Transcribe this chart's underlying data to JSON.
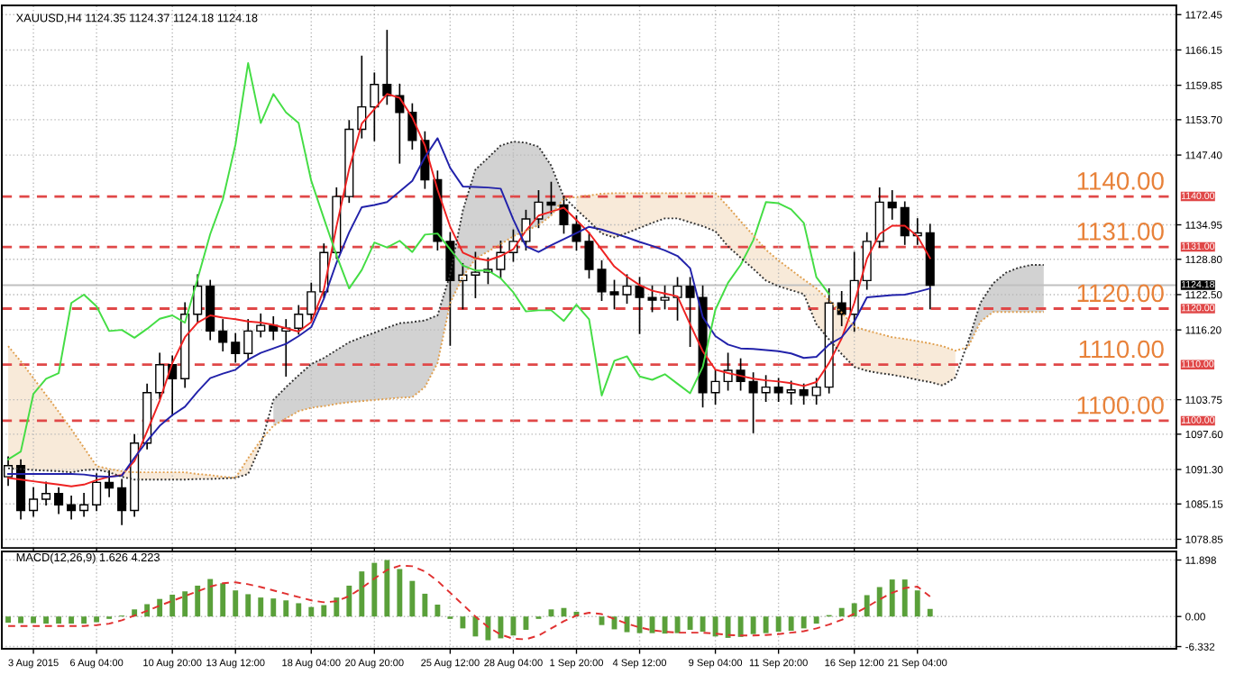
{
  "chart_data": [
    {
      "type": "candlestick",
      "title": "XAUUSD,H4 1124.35 1124.37 1124.18 1124.18",
      "categories": [
        null,
        null,
        null,
        null,
        null,
        null,
        null,
        null,
        null,
        null,
        null,
        null,
        null,
        null,
        null,
        null,
        null,
        null,
        null,
        null,
        null,
        null,
        null,
        null,
        null,
        null,
        null,
        null,
        null,
        null,
        null,
        null,
        null,
        null,
        null,
        null,
        null,
        null,
        null,
        null,
        null,
        null,
        null,
        null,
        null,
        null,
        null,
        null,
        null,
        null,
        null,
        null,
        null,
        null,
        null,
        null,
        null,
        null,
        null,
        null,
        null,
        null,
        null,
        null,
        null,
        null,
        null,
        null,
        null,
        null,
        null,
        null,
        null,
        null,
        null,
        null,
        null,
        null,
        null,
        null,
        null,
        null,
        null,
        null,
        null,
        null,
        null,
        null,
        null,
        null,
        null,
        null,
        null
      ],
      "ohlc": [
        [
          1090,
          1093.5,
          1088.5,
          1092
        ],
        [
          1092,
          1093,
          1082.5,
          1084
        ],
        [
          1084,
          1088,
          1083,
          1086
        ],
        [
          1086,
          1089,
          1085,
          1087
        ],
        [
          1087,
          1088,
          1083.5,
          1085
        ],
        [
          1085,
          1086.5,
          1082.5,
          1084
        ],
        [
          1084,
          1087,
          1083,
          1085
        ],
        [
          1085,
          1090.5,
          1084,
          1089
        ],
        [
          1089,
          1091,
          1086.5,
          1088
        ],
        [
          1088,
          1089.5,
          1081.5,
          1084
        ],
        [
          1084,
          1097.5,
          1083,
          1096
        ],
        [
          1096,
          1106.5,
          1095,
          1105
        ],
        [
          1105,
          1112,
          1104,
          1110
        ],
        [
          1110,
          1111.5,
          1101,
          1107.5
        ],
        [
          1107.5,
          1121,
          1106,
          1119
        ],
        [
          1119,
          1126,
          1117.5,
          1124
        ],
        [
          1124,
          1125,
          1114.5,
          1116
        ],
        [
          1116,
          1118,
          1112.5,
          1114
        ],
        [
          1114,
          1115.5,
          1110.5,
          1112
        ],
        [
          1112,
          1118,
          1111,
          1116
        ],
        [
          1116,
          1119,
          1115,
          1117
        ],
        [
          1117,
          1118.5,
          1114.5,
          1116
        ],
        [
          1116,
          1118,
          1108,
          1116.5
        ],
        [
          1116.5,
          1120.5,
          1115.5,
          1119
        ],
        [
          1119,
          1124.5,
          1118,
          1123
        ],
        [
          1123,
          1131.5,
          1122,
          1130
        ],
        [
          1130,
          1141.5,
          1129,
          1140
        ],
        [
          1140,
          1153.5,
          1139,
          1152
        ],
        [
          1152,
          1165,
          1150.5,
          1156
        ],
        [
          1156,
          1162,
          1150,
          1160
        ],
        [
          1160,
          1169.6,
          1156.5,
          1158
        ],
        [
          1158,
          1160,
          1146,
          1155
        ],
        [
          1155,
          1156.5,
          1148.5,
          1150
        ],
        [
          1150,
          1151.5,
          1141.5,
          1143
        ],
        [
          1143,
          1144.5,
          1130.5,
          1132
        ],
        [
          1132,
          1133.5,
          1113.5,
          1125
        ],
        [
          1125,
          1128,
          1120,
          1126
        ],
        [
          1126,
          1130,
          1122,
          1126.5
        ],
        [
          1126.5,
          1129,
          1124.5,
          1127
        ],
        [
          1127,
          1132,
          1125.5,
          1130
        ],
        [
          1130,
          1134,
          1128.5,
          1132
        ],
        [
          1132,
          1137.5,
          1130.5,
          1136
        ],
        [
          1136,
          1141,
          1134.5,
          1139
        ],
        [
          1139,
          1142.5,
          1137,
          1138.5
        ],
        [
          1138.5,
          1140,
          1133.5,
          1135
        ],
        [
          1135,
          1136.5,
          1130.5,
          1132
        ],
        [
          1132,
          1133.5,
          1125.5,
          1127
        ],
        [
          1127,
          1128.5,
          1121.5,
          1123
        ],
        [
          1123,
          1125,
          1120,
          1122.5
        ],
        [
          1122.5,
          1126,
          1121,
          1124
        ],
        [
          1124,
          1125.5,
          1115.6,
          1122
        ],
        [
          1122,
          1124,
          1119.5,
          1121.5
        ],
        [
          1121.5,
          1124,
          1120,
          1122
        ],
        [
          1122,
          1125.5,
          1118,
          1124
        ],
        [
          1124,
          1125.5,
          1113.3,
          1122
        ],
        [
          1122,
          1124,
          1102.5,
          1105
        ],
        [
          1105,
          1109,
          1103,
          1107
        ],
        [
          1107,
          1112,
          1105.5,
          1109
        ],
        [
          1109,
          1111,
          1105.5,
          1107
        ],
        [
          1107,
          1108.5,
          1097.9,
          1105
        ],
        [
          1105,
          1108,
          1103.5,
          1106
        ],
        [
          1106,
          1107.5,
          1103.5,
          1105
        ],
        [
          1105,
          1107,
          1103,
          1105.5
        ],
        [
          1105.5,
          1106.5,
          1103,
          1104.5
        ],
        [
          1104.5,
          1107.5,
          1103,
          1106
        ],
        [
          1106,
          1123.5,
          1105,
          1121
        ],
        [
          1121,
          1123,
          1117,
          1119
        ],
        [
          1119,
          1130,
          1116,
          1125
        ],
        [
          1125,
          1133.5,
          1123.5,
          1132
        ],
        [
          1132,
          1141.5,
          1131,
          1139
        ],
        [
          1139,
          1141,
          1136,
          1138
        ],
        [
          1138,
          1139,
          1131.5,
          1133
        ],
        [
          1133,
          1136,
          1131.5,
          1133.5
        ],
        [
          1133.5,
          1135,
          1120,
          1124.18
        ],
        null,
        null,
        null,
        null,
        null,
        null,
        null,
        null,
        null,
        null,
        null,
        null,
        null,
        null,
        null,
        null,
        null,
        null,
        null
      ],
      "series": [
        {
          "type": "line",
          "color": "#ee2222",
          "values": [
            1089.8,
            1089.5,
            1089.2,
            1088.9,
            1088.6,
            1088.3,
            1088.6,
            1089.4,
            1090,
            1090.3,
            1092.8,
            1098.1,
            1103.6,
            1110.3,
            1114.9,
            1117.5,
            1118.8,
            1118.4,
            1118.1,
            1117.7,
            1117.5,
            1117.1,
            1116.5,
            1115.9,
            1117.6,
            1123.4,
            1134.7,
            1144.9,
            1153,
            1155.6,
            1158.3,
            1157.6,
            1154.1,
            1149.1,
            1141.2,
            1134.6,
            1130,
            1129,
            1128.6,
            1129.4,
            1130.6,
            1133.9,
            1136.6,
            1137.3,
            1138,
            1135.8,
            1133.5,
            1130.5,
            1127.5,
            1125.7,
            1124.2,
            1123.2,
            1122.7,
            1122.2,
            1117.2,
            1112.4,
            1109.1,
            1108.5,
            1108,
            1107.5,
            1107.2,
            1107,
            1106.7,
            1106.2,
            1106.9,
            1110.3,
            1114.7,
            1121,
            1128.9,
            1133.3,
            1134.8,
            1134.8,
            1132.9,
            1129,
            null,
            null,
            null,
            null,
            null,
            null,
            null,
            null,
            null,
            null,
            null,
            null,
            null,
            null,
            null,
            null,
            null,
            null,
            null
          ]
        },
        {
          "type": "line",
          "color": "#2222aa",
          "values": [
            1090.5,
            1090.5,
            1090.5,
            1090.5,
            1090.5,
            1090.5,
            1090.4,
            1090.1,
            1090,
            1090.2,
            1093.4,
            1096.4,
            1099.1,
            1101,
            1102.5,
            1105.2,
            1107.6,
            1108.4,
            1109.1,
            1110.9,
            1112.1,
            1112.9,
            1113.7,
            1115.1,
            1116.7,
            1121.8,
            1128.2,
            1133.6,
            1138.1,
            1138.5,
            1139,
            1140.9,
            1142.8,
            1147,
            1150.4,
            1145.1,
            1141.8,
            1141.7,
            1141.6,
            1141.4,
            1135.9,
            1131.1,
            1130.1,
            1131.3,
            1132.4,
            1133.5,
            1134.6,
            1134.1,
            1133.4,
            1132.7,
            1131.9,
            1131.2,
            1130.4,
            1129.4,
            1127.2,
            1118.5,
            1115.1,
            1113.6,
            1112.9,
            1112.8,
            1112.6,
            1112.4,
            1112,
            1111.2,
            1111.4,
            1113.6,
            1114.9,
            1117.7,
            1122,
            1122.2,
            1122.4,
            1122.5,
            1123,
            1123.6,
            null,
            null,
            null,
            null,
            null,
            null,
            null,
            null,
            null,
            null,
            null,
            null,
            null,
            null,
            null,
            null,
            null,
            null,
            null
          ]
        },
        {
          "type": "line",
          "color": "#44dd44",
          "values": [
            1093.1,
            1094.5,
            1104.8,
            1107.5,
            1108.5,
            1121,
            1122.5,
            1120.4,
            1116,
            1116.2,
            1114.8,
            1116.4,
            1118.2,
            1118.8,
            1117.5,
            1125.3,
            1133.3,
            1139.5,
            1149.3,
            1163.8,
            1153.1,
            1158.3,
            1155,
            1153.1,
            1142.8,
            1136.1,
            1129.5,
            1123.6,
            1126.9,
            1131.8,
            1130.9,
            1132.1,
            1130.1,
            1133.2,
            1133.4,
            1130.6,
            1127.7,
            1126.8,
            1126.8,
            1125.4,
            1122.9,
            1119.5,
            1119.7,
            1119.7,
            1117.8,
            1120.7,
            1118.1,
            1104.5,
            1110.7,
            1111.5,
            1107.9,
            1107.3,
            1108.3,
            1106.6,
            1104.9,
            1109.6,
            1119.8,
            1124.6,
            1127.8,
            1132.2,
            1139,
            1138.8,
            1137.7,
            1135.3,
            1125.6,
            1122.6,
            null,
            null,
            null,
            null,
            null,
            null,
            null,
            null,
            null,
            null,
            null,
            null,
            null,
            null,
            null,
            null,
            null,
            null,
            null,
            null,
            null,
            null,
            null,
            null,
            null,
            null,
            null
          ]
        },
        {
          "type": "line",
          "color": "#e0a050",
          "line_style": "dotted",
          "lower": [
            1091.5,
            1091.4,
            1091.2,
            1091.1,
            1091,
            1090.8,
            1091.2,
            1091.3,
            1090.8,
            1090,
            1089.5,
            1089.5,
            1089.5,
            1089.5,
            1089.5,
            1089.6,
            1089.6,
            1089.7,
            1089.8,
            1090.5,
            1095.6,
            null,
            null,
            null,
            null,
            null,
            null,
            null,
            null,
            null,
            null,
            null,
            null,
            null,
            null,
            null,
            null,
            null,
            null,
            null,
            null,
            null,
            null,
            null,
            null,
            1137.7,
            1135.6,
            1133.4,
            1132.7,
            1133.5,
            1134.4,
            1135.3,
            1136.1,
            1136.1,
            1135.4,
            1134.7,
            1133.8,
            1131.1,
            1129.1,
            1127.1,
            1125,
            1124,
            1123.3,
            1122.6,
            1117.2,
            1114.5,
            1111.9,
            1109.6,
            1108.9,
            1108.5,
            1108.2,
            1107.8,
            1107.3,
            1106.9,
            1106.3,
            1107.7,
            null,
            null,
            null,
            null,
            null,
            null,
            null,
            null,
            null,
            null,
            null,
            null,
            null,
            null,
            null,
            null,
            null
          ],
          "upper": [
            1113.3,
            1110.6,
            1107.6,
            1104.6,
            1101.6,
            1098.5,
            1095.2,
            1091.9,
            1091.4,
            1091,
            1090.8,
            1090.8,
            1090.8,
            1090.8,
            1090.8,
            1090.5,
            1090.3,
            1090,
            1089.8,
            1093.3,
            1096.5,
            null,
            null,
            null,
            null,
            null,
            null,
            null,
            null,
            null,
            null,
            null,
            null,
            null,
            null,
            null,
            null,
            null,
            null,
            null,
            null,
            null,
            null,
            null,
            null,
            1139.9,
            1140.2,
            1140.5,
            1140.6,
            1140.6,
            1140.6,
            1140.6,
            1140.6,
            1140.6,
            1140.6,
            1140.6,
            1140.6,
            1138.2,
            1135.6,
            1133.1,
            1130.5,
            1128.6,
            1126.9,
            1125.2,
            1123.6,
            1121.5,
            1119.3,
            1116.8,
            1116.1,
            1115.5,
            1114.9,
            1114.6,
            1114.2,
            1113.8,
            1113.3,
            1112.5,
            null,
            null,
            null,
            null,
            null,
            null,
            null,
            null,
            null,
            null,
            null,
            null,
            null,
            null,
            null,
            null,
            null
          ],
          "values": [
            1113.3,
            1110.6,
            1107.6,
            1104.6,
            1101.6,
            1098.5,
            1095.2,
            1091.9,
            1091.4,
            1091,
            1090.8,
            1090.8,
            1090.8,
            1090.8,
            1090.8,
            1090.5,
            1090.3,
            1090,
            1089.8,
            1093.3,
            1096.5,
            1099.1,
            1100.4,
            1101.7,
            1102.3,
            1102.6,
            1103,
            1103.3,
            1103.5,
            1103.7,
            1103.9,
            1104.1,
            1104.2,
            1106,
            1110.3,
            1121,
            1125.7,
            1128.9,
            1130.2,
            1131.5,
            1132.9,
            1133.9,
            1134.9,
            1136.6,
            1139.7,
            1139.9,
            1140.2,
            1140.5,
            1140.6,
            1140.6,
            1140.6,
            1140.6,
            1140.6,
            1140.6,
            1140.6,
            1140.6,
            1140.6,
            1138.2,
            1135.6,
            1133.1,
            1130.5,
            1128.6,
            1126.9,
            1125.2,
            1123.6,
            1121.5,
            1119.3,
            1116.8,
            1116.1,
            1115.5,
            1114.9,
            1114.6,
            1114.2,
            1113.8,
            1113.3,
            1112.5,
            1113.1,
            1117.7,
            1119.4,
            1119.4,
            1119.4,
            1119.4,
            1119.4,
            null,
            null,
            null,
            null,
            null,
            null,
            null,
            null,
            null,
            null
          ]
        },
        {
          "type": "line",
          "color": "#333333",
          "line_style": "dotted",
          "upper": [
            null,
            null,
            null,
            null,
            null,
            null,
            null,
            null,
            null,
            null,
            null,
            null,
            null,
            null,
            null,
            null,
            null,
            null,
            null,
            null,
            null,
            1103.7,
            1106,
            1108.1,
            1110.1,
            1111.2,
            1112.6,
            1114,
            1114.9,
            1115.7,
            1116.6,
            1117.4,
            1117.6,
            1117.9,
            1118.8,
            1126.1,
            1137.5,
            1144.8,
            1146.9,
            1149.1,
            1149.8,
            1149.6,
            1148.9,
            1145.5,
            1139.9,
            null,
            null,
            null,
            null,
            null,
            null,
            null,
            null,
            null,
            null,
            null,
            null,
            null,
            null,
            null,
            null,
            null,
            null,
            null,
            null,
            null,
            null,
            null,
            null,
            null,
            null,
            null,
            null,
            null,
            null,
            null,
            1114,
            1121.1,
            1124.5,
            1126.4,
            1127.3,
            1127.8,
            1127.8,
            null,
            null,
            null,
            null,
            null,
            null,
            null,
            null,
            null,
            null
          ],
          "lower": [
            null,
            null,
            null,
            null,
            null,
            null,
            null,
            null,
            null,
            null,
            null,
            null,
            null,
            null,
            null,
            null,
            null,
            null,
            null,
            null,
            null,
            1099.1,
            1100.4,
            1101.7,
            1102.3,
            1102.6,
            1103,
            1103.3,
            1103.5,
            1103.7,
            1103.9,
            1104.1,
            1104.2,
            1106,
            1110.3,
            1121,
            1125.7,
            1128.9,
            1130.2,
            1131.5,
            1132.9,
            1133.9,
            1134.9,
            1136.6,
            1139.7,
            null,
            null,
            null,
            null,
            null,
            null,
            null,
            null,
            null,
            null,
            null,
            null,
            null,
            null,
            null,
            null,
            null,
            null,
            null,
            null,
            null,
            null,
            null,
            null,
            null,
            null,
            null,
            null,
            null,
            null,
            null,
            1113.1,
            1117.7,
            1119.4,
            1119.4,
            1119.4,
            1119.4,
            1119.4,
            null,
            null,
            null,
            null,
            null,
            null,
            null,
            null,
            null,
            null
          ],
          "values": [
            1091.5,
            1091.4,
            1091.2,
            1091.1,
            1091,
            1090.8,
            1091.2,
            1091.3,
            1090.8,
            1090,
            1089.5,
            1089.5,
            1089.5,
            1089.5,
            1089.5,
            1089.6,
            1089.6,
            1089.7,
            1089.8,
            1090.5,
            1095.6,
            1103.7,
            1106,
            1108.1,
            1110.1,
            1111.2,
            1112.6,
            1114,
            1114.9,
            1115.7,
            1116.6,
            1117.4,
            1117.6,
            1117.9,
            1118.8,
            1126.1,
            1137.5,
            1144.8,
            1146.9,
            1149.1,
            1149.8,
            1149.6,
            1148.9,
            1145.5,
            1139.9,
            1137.7,
            1135.6,
            1133.4,
            1132.7,
            1133.5,
            1134.4,
            1135.3,
            1136.1,
            1136.1,
            1135.4,
            1134.7,
            1133.8,
            1131.1,
            1129.1,
            1127.1,
            1125,
            1124,
            1123.3,
            1122.6,
            1117.2,
            1114.5,
            1111.9,
            1109.6,
            1108.9,
            1108.5,
            1108.2,
            1107.8,
            1107.3,
            1106.9,
            1106.3,
            1107.7,
            1114,
            1121.1,
            1124.5,
            1126.4,
            1127.3,
            1127.8,
            1127.8,
            null,
            null,
            null,
            null,
            null,
            null,
            null,
            null,
            null,
            null
          ]
        }
      ],
      "ylim": [
        1077.3,
        1174.1
      ],
      "yticks": [
        {
          "value": 1172.45,
          "label": "1172.45"
        },
        {
          "value": 1166.15,
          "label": "1166.15"
        },
        {
          "value": 1159.85,
          "label": "1159.85"
        },
        {
          "value": 1153.7,
          "label": "1153.70"
        },
        {
          "value": 1147.4,
          "label": "1147.40"
        },
        {
          "value": 1134.95,
          "label": "1134.95"
        },
        {
          "value": 1128.8,
          "label": "1128.80"
        },
        {
          "value": 1122.5,
          "label": "1122.50"
        },
        {
          "value": 1116.2,
          "label": "1116.20"
        },
        {
          "value": 1103.75,
          "label": "1103.75"
        },
        {
          "value": 1097.6,
          "label": "1097.60"
        },
        {
          "value": 1091.3,
          "label": "1091.30"
        },
        {
          "value": 1085.15,
          "label": "1085.15"
        },
        {
          "value": 1078.85,
          "label": "1078.85"
        }
      ],
      "ref_lines": [
        {
          "axis": "y",
          "value": 1140,
          "label": "1140.00",
          "color": "#e04848",
          "line_style": "dashed"
        },
        {
          "axis": "y",
          "value": 1131,
          "label": "1131.00",
          "color": "#e04848",
          "line_style": "dashed"
        },
        {
          "axis": "y",
          "value": 1120,
          "label": "1120.00",
          "color": "#e04848",
          "line_style": "dashed"
        },
        {
          "axis": "y",
          "value": 1110,
          "label": "1110.00",
          "color": "#e04848",
          "line_style": "dashed"
        },
        {
          "axis": "y",
          "value": 1100,
          "label": "1100.00",
          "color": "#e04848",
          "line_style": "dashed"
        },
        {
          "axis": "y",
          "value": 1124.18,
          "label": "1124.18",
          "color": "#c0c0c0",
          "line_style": "solid"
        }
      ],
      "grid": true,
      "tick_labels": "y"
    },
    {
      "type": "bar",
      "title": "MACD(12,26,9) 1.626 4.223",
      "categories": [
        null,
        null,
        "3 Aug 2015",
        null,
        null,
        null,
        null,
        "6 Aug 04:00",
        null,
        null,
        null,
        null,
        null,
        "10 Aug 20:00",
        null,
        null,
        null,
        null,
        "13 Aug 12:00",
        null,
        null,
        null,
        null,
        null,
        "18 Aug 04:00",
        null,
        null,
        null,
        null,
        "20 Aug 20:00",
        null,
        null,
        null,
        null,
        null,
        "25 Aug 12:00",
        null,
        null,
        null,
        null,
        "28 Aug 04:00",
        null,
        null,
        null,
        null,
        "1 Sep 20:00",
        null,
        null,
        null,
        null,
        "4 Sep 12:00",
        null,
        null,
        null,
        null,
        null,
        "9 Sep 04:00",
        null,
        null,
        null,
        null,
        "11 Sep 20:00",
        null,
        null,
        null,
        null,
        null,
        "16 Sep 12:00",
        null,
        null,
        null,
        null,
        "21 Sep 04:00",
        null,
        null,
        null,
        null,
        null,
        null,
        null,
        null,
        null,
        null,
        null,
        null,
        null,
        null,
        null,
        null,
        null,
        null,
        null,
        null
      ],
      "series": [
        {
          "type": "bar",
          "color": "#5aa03a",
          "values": [
            -1.3,
            -1.4,
            -1.4,
            -1.5,
            -1.5,
            -1.5,
            -1.5,
            -1.2,
            -0.5,
            0.2,
            1.5,
            2.6,
            3.7,
            4.6,
            5.3,
            6.5,
            7.9,
            7,
            5.5,
            4.7,
            4,
            3.8,
            3.4,
            2.8,
            2,
            2.4,
            4,
            6.5,
            9.5,
            11.3,
            11.9,
            10,
            7.5,
            4.8,
            2.5,
            -0.5,
            -2.5,
            -4.2,
            -5,
            -4.6,
            -4,
            -2.8,
            -0.5,
            1.5,
            1.8,
            1,
            0,
            -1.8,
            -2.7,
            -3.3,
            -3.5,
            -3.5,
            -3.6,
            -3.5,
            -2.8,
            -3.2,
            -4.2,
            -4.5,
            -4.3,
            -3.7,
            -3.5,
            -3.2,
            -3,
            -2.5,
            -1.5,
            0.3,
            1.8,
            2.8,
            4.5,
            6.2,
            7.8,
            7.8,
            5.5,
            1.6,
            null,
            null,
            null,
            null,
            null,
            null,
            null,
            null,
            null,
            null,
            null,
            null,
            null,
            null,
            null,
            null,
            null,
            null,
            null
          ]
        },
        {
          "type": "line",
          "color": "#e03030",
          "line_style": "dashed",
          "values": [
            -2,
            -2,
            -2,
            -2,
            -2,
            -2,
            -2,
            -1.8,
            -1.5,
            -0.8,
            0.2,
            1.2,
            2.3,
            3.3,
            4.3,
            5.3,
            6.3,
            7,
            7.2,
            6.8,
            6.2,
            5.5,
            4.8,
            4.1,
            3.4,
            3,
            3.2,
            4.3,
            6,
            8,
            9.8,
            10.7,
            10.6,
            9.5,
            7.5,
            5,
            2.5,
            0,
            -2.2,
            -3.8,
            -4.7,
            -4.8,
            -4,
            -2.5,
            -1,
            0.2,
            0.8,
            0.5,
            -0.5,
            -1.5,
            -2.3,
            -2.9,
            -3.2,
            -3.4,
            -3.4,
            -3.4,
            -3.6,
            -3.9,
            -4,
            -4,
            -3.9,
            -3.7,
            -3.4,
            -3.1,
            -2.5,
            -1.7,
            -0.7,
            0.6,
            2,
            3.6,
            5,
            6,
            6.3,
            4.2,
            null,
            null,
            null,
            null,
            null,
            null,
            null,
            null,
            null,
            null,
            null,
            null,
            null,
            null,
            null,
            null,
            null,
            null,
            null
          ]
        }
      ],
      "ylim": [
        -6.8,
        13.7
      ],
      "yticks": [
        {
          "value": 11.898,
          "label": "11.898"
        },
        {
          "value": 0,
          "label": "0.00"
        },
        {
          "value": -6.332,
          "label": "-6.332"
        }
      ],
      "grid": true
    }
  ]
}
